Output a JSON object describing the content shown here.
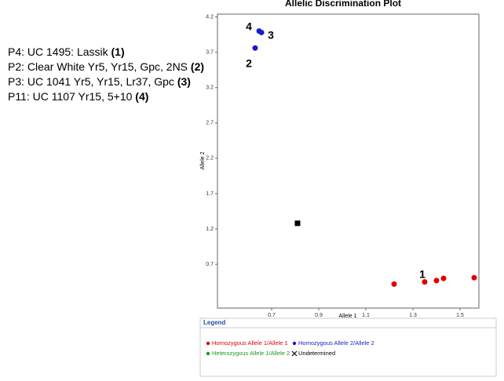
{
  "chart_data": {
    "type": "scatter",
    "title": "Allelic Discrimination Plot",
    "x_label": "Allele 1",
    "y_label": "Allele 2",
    "xlim": [
      0.47,
      1.58
    ],
    "xticks": [
      0.7,
      0.9,
      1.1,
      1.3,
      1.5
    ],
    "ylim": [
      0.08,
      4.24
    ],
    "yticks": [
      0.7,
      1.2,
      1.7,
      2.2,
      2.7,
      3.2,
      3.7,
      4.2
    ],
    "legend_title": "Legend",
    "series": [
      {
        "name": "Homozygous Allele 1/Allele 1",
        "color": "#e00000",
        "marker": "circle",
        "x": [
          1.22,
          1.35,
          1.4,
          1.43,
          1.56
        ],
        "y": [
          0.42,
          0.45,
          0.47,
          0.5,
          0.51
        ]
      },
      {
        "name": "Homozygous Allele 2/Allele 2",
        "color": "#1a1ad0",
        "marker": "circle",
        "x": [
          0.647,
          0.657,
          0.63
        ],
        "y": [
          4.0,
          3.98,
          3.76
        ]
      },
      {
        "name": "Heterozygous Allele 1/Allele 2",
        "color": "#1a9a1a",
        "marker": "circle",
        "x": [],
        "y": []
      },
      {
        "name": "Undetermined",
        "color": "#000000",
        "marker": "square",
        "x": [
          0.81
        ],
        "y": [
          1.28
        ]
      }
    ],
    "annotations": [
      "4",
      "3",
      "2",
      "1"
    ],
    "notes": [
      {
        "text": "P4: UC 1495: Lassik",
        "bold": "(1)"
      },
      {
        "text": "P2: Clear White Yr5, Yr15, Gpc, 2NS",
        "bold": "(2)"
      },
      {
        "text": "P3: UC 1041 Yr5, Yr15, Lr37, Gpc ",
        "bold": "(3)"
      },
      {
        "text": "P11: UC 1107 Yr15, 5+10 ",
        "bold": "(4)"
      }
    ]
  }
}
